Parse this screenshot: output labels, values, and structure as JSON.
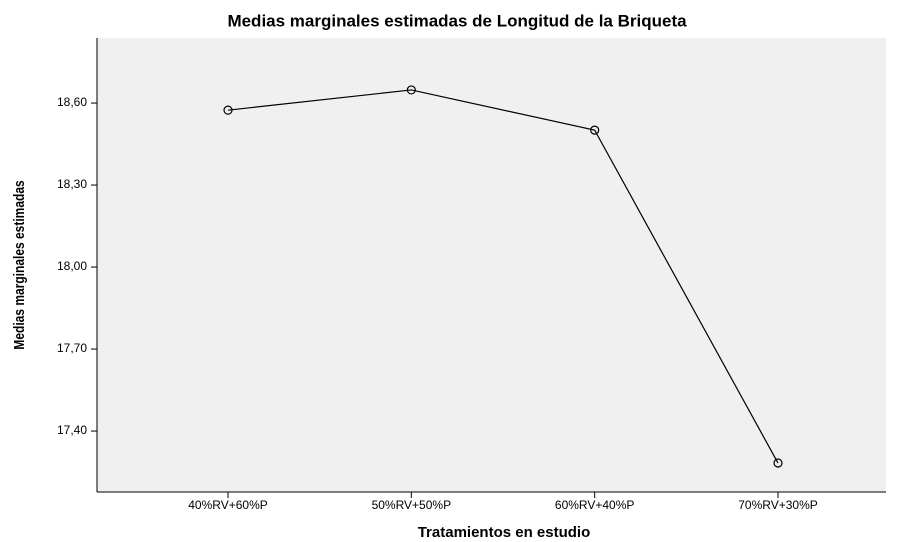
{
  "chart_data": {
    "type": "line",
    "title": "Medias marginales estimadas de Longitud de la Briqueta",
    "x_label": "Tratamientos en estudio",
    "y_label": "Medias marginales estimadas",
    "categories": [
      "40%RV+60%P",
      "50%RV+50%P",
      "60%RV+40%P",
      "70%RV+30%P"
    ],
    "series": [
      {
        "name": "Longitud de la Briqueta",
        "color": "#000000",
        "values": [
          18.574,
          18.648,
          18.501,
          17.283
        ]
      }
    ],
    "ylim": [
      17.177,
      18.838
    ],
    "yticks": [
      {
        "value": 17.4,
        "label": "17,40"
      },
      {
        "value": 17.7,
        "label": "17,70"
      },
      {
        "value": 18.0,
        "label": "18,00"
      },
      {
        "value": 18.3,
        "label": "18,30"
      },
      {
        "value": 18.6,
        "label": "18,60"
      }
    ],
    "grid": false
  }
}
